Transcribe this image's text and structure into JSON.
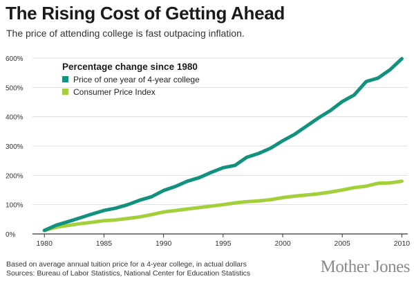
{
  "header": {
    "title": "The Rising Cost of Getting Ahead",
    "subtitle": "The price of attending college is fast outpacing inflation."
  },
  "footer": {
    "note": "Based on average annual tuition price for a 4-year college, in actual dollars",
    "sources": "Sources: Bureau of Labor Statistics, National Center for Education Statistics",
    "brand": "Mother Jones"
  },
  "chart_data": {
    "type": "line",
    "title": "The Rising Cost of Getting Ahead",
    "legend_title": "Percentage change since 1980",
    "legend_position": "top-left",
    "xlabel": "",
    "ylabel": "",
    "xlim": [
      1979,
      2010.5
    ],
    "ylim": [
      0,
      600
    ],
    "x_ticks": [
      1980,
      1985,
      1990,
      1995,
      2000,
      2005,
      2010
    ],
    "y_ticks": [
      0,
      100,
      200,
      300,
      400,
      500,
      600
    ],
    "y_tick_labels": [
      "0%",
      "100%",
      "200%",
      "300%",
      "400%",
      "500%",
      "600%"
    ],
    "grid": true,
    "x": [
      1980,
      1981,
      1982,
      1983,
      1984,
      1985,
      1986,
      1987,
      1988,
      1989,
      1990,
      1991,
      1992,
      1993,
      1994,
      1995,
      1996,
      1997,
      1998,
      1999,
      2000,
      2001,
      2002,
      2003,
      2004,
      2005,
      2006,
      2007,
      2008,
      2009,
      2010
    ],
    "series": [
      {
        "name": "Price of one year of 4-year college",
        "color": "#13917f",
        "values": [
          12,
          30,
          42,
          55,
          68,
          80,
          88,
          100,
          115,
          127,
          148,
          162,
          180,
          192,
          210,
          226,
          234,
          262,
          275,
          293,
          318,
          340,
          368,
          396,
          421,
          452,
          474,
          520,
          532,
          560,
          598
        ]
      },
      {
        "name": "Consumer Price Index",
        "color": "#a3cf3a",
        "values": [
          12,
          23,
          29,
          35,
          40,
          45,
          48,
          53,
          58,
          66,
          75,
          80,
          85,
          90,
          95,
          100,
          106,
          110,
          113,
          117,
          124,
          129,
          133,
          137,
          143,
          150,
          158,
          163,
          173,
          174,
          180
        ]
      }
    ]
  }
}
